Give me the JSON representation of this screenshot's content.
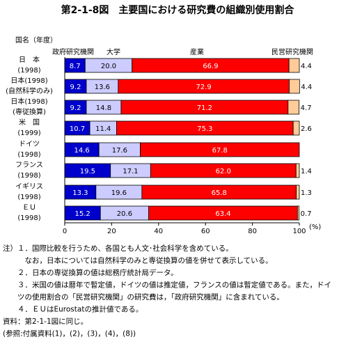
{
  "chart_data": {
    "type": "stacked-bar-horizontal",
    "title": "第2-1-8図　主要国における研究費の組織別使用割合",
    "category_header": "国名（年度）",
    "categories": [
      [
        "日　本",
        "(1998)"
      ],
      [
        "日本(1998)",
        "(自然科学のみ)"
      ],
      [
        "日本(1998)",
        "(専従換算)"
      ],
      [
        "米　国",
        "(1999)"
      ],
      [
        "ドイツ",
        "(1998)"
      ],
      [
        "フランス",
        "(1998)"
      ],
      [
        "イギリス",
        "(1998)"
      ],
      [
        "ＥＵ",
        "(1998)"
      ]
    ],
    "series": [
      {
        "name": "政府研究機関",
        "color": "#0000cc",
        "values": [
          8.7,
          9.2,
          9.2,
          10.7,
          14.6,
          19.5,
          13.3,
          15.2
        ],
        "value_labels": [
          "8.7",
          "9.2",
          "9.2",
          "10.7",
          "14.6",
          "19.5",
          "13.3",
          "15.2"
        ]
      },
      {
        "name": "大学",
        "color": "#ccccff",
        "values": [
          20,
          13.6,
          14.8,
          11.4,
          17.6,
          17.1,
          19.6,
          20.6
        ],
        "value_labels": [
          "20.0",
          "13.6",
          "14.8",
          "11.4",
          "17.6",
          "17.1",
          "19.6",
          "20.6"
        ]
      },
      {
        "name": "産業",
        "color": "#ff0000",
        "values": [
          66.9,
          72.9,
          71.2,
          75.3,
          67.8,
          62,
          65.8,
          63.4
        ],
        "value_labels": [
          "66.9",
          "72.9",
          "71.2",
          "75.3",
          "67.8",
          "62.0",
          "65.8",
          "63.4"
        ]
      },
      {
        "name": "民営研究機関",
        "color": "#ffcc99",
        "values": [
          4.4,
          4.4,
          4.7,
          2.6,
          null,
          1.4,
          1.3,
          0.7
        ],
        "value_labels": [
          "4.4",
          "4.4",
          "4.7",
          "2.6",
          null,
          "1.4",
          "1.3",
          "0.7"
        ]
      }
    ],
    "xlim": [
      0,
      100
    ],
    "xticks": [
      0,
      20,
      40,
      60,
      80,
      100
    ],
    "x_unit": "(%)"
  },
  "notes": [
    "注）１．国際比較を行うため、各国とも人文･社会科学を含めている。",
    "　　　なお，日本については自然科学のみと専従換算の値を併せて表示している。",
    "　　２．日本の専従換算の値は総務庁統計局データ。",
    "　　３．米国の値は暦年で暫定値，ドイツの値は推定値，フランスの値は暫定値である。また，ドイ",
    "　　ツの使用割合の「民営研究機関」の研究費は，「政府研究機関」に含まれている。",
    "　　４．ＥＵはEurostatの推計値である。",
    "資料：第2-1-1図に同じ。",
    "(参照:付属資料(1)，(2)，(3)，(4)，(8))"
  ]
}
